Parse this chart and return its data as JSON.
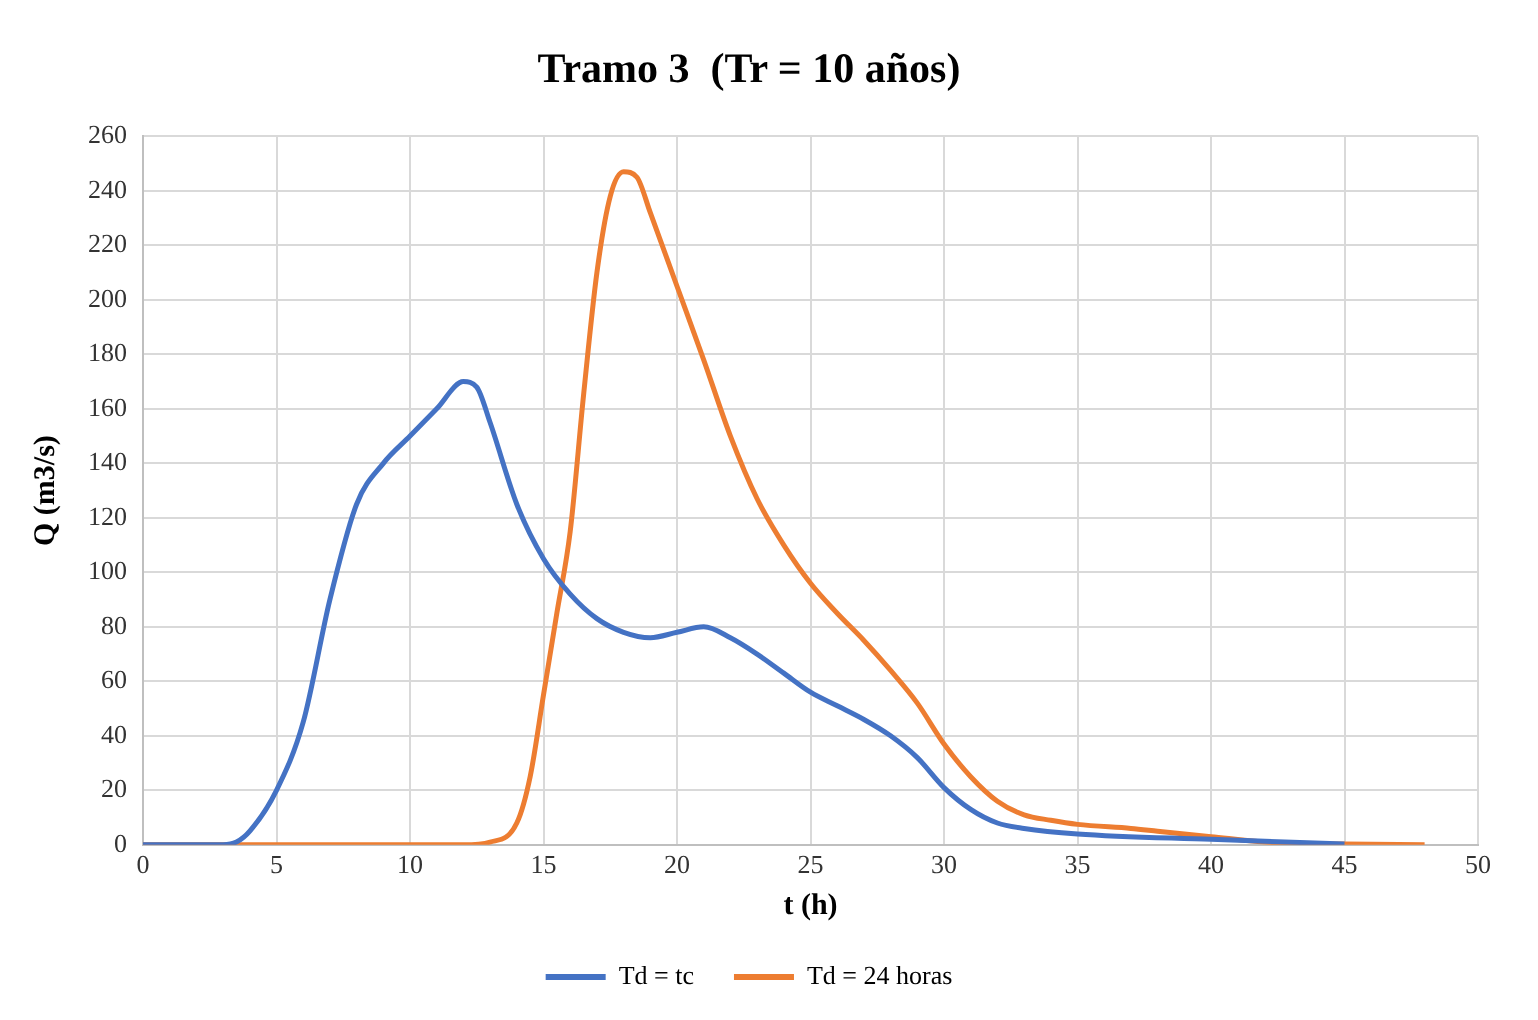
{
  "chart_data": {
    "type": "line",
    "title": "Tramo 3  (Tr = 10 años)",
    "xlabel": "t (h)",
    "ylabel": "Q (m3/s)",
    "xlim": [
      0,
      50
    ],
    "xticks": [
      0,
      5,
      10,
      15,
      20,
      25,
      30,
      35,
      40,
      45,
      50
    ],
    "ylim": [
      0,
      260
    ],
    "yticks": [
      0,
      20,
      40,
      60,
      80,
      100,
      120,
      140,
      160,
      180,
      200,
      220,
      240,
      260
    ],
    "grid": true,
    "legend": "bottom",
    "marker": "none",
    "line_style": "solid",
    "series": [
      {
        "name": "Td = tc",
        "color": "#4472c4",
        "x": [
          0,
          3,
          3.5,
          4,
          5,
          6,
          7,
          8,
          9,
          10,
          11,
          12,
          12.5,
          13,
          14,
          15,
          16,
          17,
          18,
          19,
          20,
          21,
          22,
          23,
          24,
          25,
          26,
          27,
          28,
          29,
          30,
          31,
          32,
          33,
          35,
          40,
          45
        ],
        "values": [
          0,
          0,
          1,
          5,
          20,
          45,
          90,
          125,
          140,
          150,
          160,
          170,
          168,
          155,
          125,
          105,
          92,
          83,
          78,
          76,
          78,
          80,
          76,
          70,
          63,
          56,
          51,
          46,
          40,
          32,
          21,
          13,
          8,
          6,
          4,
          2,
          0.3
        ]
      },
      {
        "name": "Td = 24 horas",
        "color": "#ed7d31",
        "x": [
          0,
          12,
          13,
          14,
          14.5,
          15,
          15.5,
          16,
          16.5,
          17,
          17.5,
          18,
          18.5,
          19,
          20,
          21,
          22,
          23,
          24,
          25,
          26,
          27,
          28,
          29,
          30,
          31,
          32,
          33,
          34,
          35,
          37,
          38,
          40,
          42,
          45,
          48
        ],
        "values": [
          0,
          0,
          1,
          8,
          25,
          55,
          85,
          115,
          165,
          210,
          238,
          247,
          245,
          232,
          205,
          178,
          150,
          127,
          110,
          96,
          85,
          75,
          64,
          52,
          37,
          25,
          16,
          11,
          9,
          7.5,
          6,
          5,
          3,
          1,
          0.3,
          0
        ]
      }
    ]
  }
}
